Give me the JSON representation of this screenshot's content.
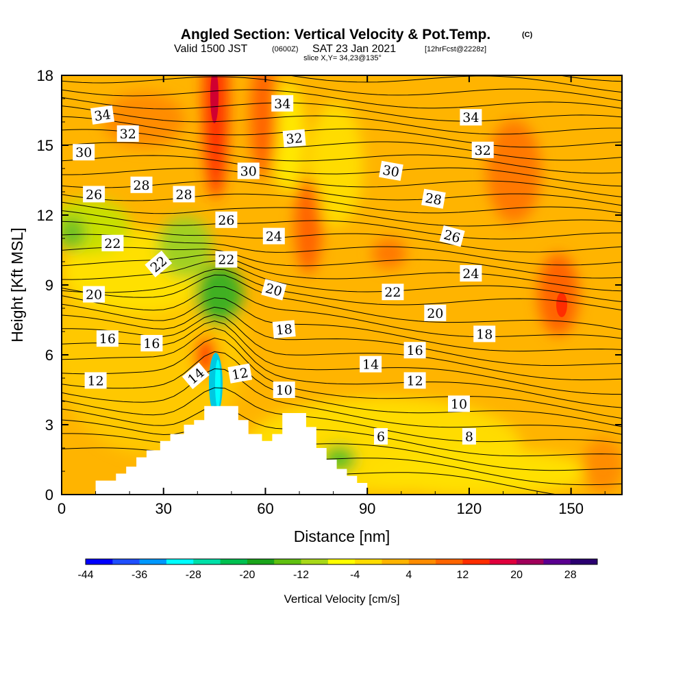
{
  "header": {
    "title": "Angled Section: Vertical Velocity & Pot.Temp.",
    "title_units": "(C)",
    "valid_prefix": "Valid 1500 JST",
    "valid_zulu": "(0600Z)",
    "valid_date": "SAT 23 Jan 2021",
    "forecast": "[12hrFcst@2228z]",
    "slice": "slice X,Y= 34,23@135°"
  },
  "chart_data": {
    "type": "heatmap",
    "xlabel": "Distance [nm]",
    "ylabel": "Height [Kft MSL]",
    "xlim": [
      0,
      165
    ],
    "ylim": [
      0,
      18
    ],
    "x_ticks": [
      0,
      30,
      60,
      90,
      120,
      150
    ],
    "y_ticks": [
      0,
      3,
      6,
      9,
      12,
      15,
      18
    ],
    "colorbar": {
      "label": "Vertical Velocity [cm/s]",
      "min": -44,
      "max": 32,
      "step": 4,
      "tick_values": [
        -44,
        -36,
        -28,
        -20,
        -12,
        -4,
        4,
        12,
        20,
        28
      ],
      "colors": [
        "#0000ff",
        "#1f4fff",
        "#0098ff",
        "#00ffff",
        "#00e0a8",
        "#00c050",
        "#1aa41a",
        "#60c010",
        "#a8d818",
        "#ffff00",
        "#ffdc00",
        "#ffb400",
        "#ff8c00",
        "#ff6400",
        "#ff2d00",
        "#e0003c",
        "#a0005a",
        "#5a0090",
        "#2a0070"
      ]
    },
    "contour_labels": [
      {
        "text": "34",
        "x": 12,
        "y": 16.3,
        "angle": -8
      },
      {
        "text": "32",
        "x": 19.5,
        "y": 15.5,
        "angle": 0
      },
      {
        "text": "30",
        "x": 6.5,
        "y": 14.7,
        "angle": 0
      },
      {
        "text": "26",
        "x": 9.5,
        "y": 12.9,
        "angle": 0
      },
      {
        "text": "28",
        "x": 23.5,
        "y": 13.3,
        "angle": 0
      },
      {
        "text": "28",
        "x": 36,
        "y": 12.9,
        "angle": 0
      },
      {
        "text": "26",
        "x": 48.5,
        "y": 11.8,
        "angle": 0
      },
      {
        "text": "24",
        "x": 62.5,
        "y": 11.1,
        "angle": 0
      },
      {
        "text": "22",
        "x": 15,
        "y": 10.8,
        "angle": 0
      },
      {
        "text": "22",
        "x": 28.5,
        "y": 9.9,
        "angle": -40
      },
      {
        "text": "22",
        "x": 48.5,
        "y": 10.1,
        "angle": 0
      },
      {
        "text": "20",
        "x": 9.5,
        "y": 8.6,
        "angle": 0
      },
      {
        "text": "20",
        "x": 62.5,
        "y": 8.8,
        "angle": 15
      },
      {
        "text": "16",
        "x": 13.5,
        "y": 6.7,
        "angle": 0
      },
      {
        "text": "16",
        "x": 26.5,
        "y": 6.5,
        "angle": 0
      },
      {
        "text": "14",
        "x": 39.5,
        "y": 5.1,
        "angle": -40
      },
      {
        "text": "12",
        "x": 10,
        "y": 4.9,
        "angle": 0
      },
      {
        "text": "12",
        "x": 52.5,
        "y": 5.2,
        "angle": -10
      },
      {
        "text": "10",
        "x": 65.5,
        "y": 4.5,
        "angle": 0
      },
      {
        "text": "34",
        "x": 65,
        "y": 16.8,
        "angle": 0
      },
      {
        "text": "32",
        "x": 68.5,
        "y": 15.3,
        "angle": -5
      },
      {
        "text": "30",
        "x": 55,
        "y": 13.9,
        "angle": 0
      },
      {
        "text": "18",
        "x": 65.5,
        "y": 7.1,
        "angle": -5
      },
      {
        "text": "30",
        "x": 97,
        "y": 13.9,
        "angle": 10
      },
      {
        "text": "28",
        "x": 109.5,
        "y": 12.7,
        "angle": 10
      },
      {
        "text": "26",
        "x": 115,
        "y": 11.1,
        "angle": 15
      },
      {
        "text": "24",
        "x": 120.5,
        "y": 9.5,
        "angle": 0
      },
      {
        "text": "22",
        "x": 97.5,
        "y": 8.7,
        "angle": 0
      },
      {
        "text": "20",
        "x": 110,
        "y": 7.8,
        "angle": 0
      },
      {
        "text": "18",
        "x": 124.5,
        "y": 6.9,
        "angle": 0
      },
      {
        "text": "16",
        "x": 104,
        "y": 6.2,
        "angle": 0
      },
      {
        "text": "14",
        "x": 91,
        "y": 5.6,
        "angle": 0
      },
      {
        "text": "12",
        "x": 104,
        "y": 4.9,
        "angle": 0
      },
      {
        "text": "10",
        "x": 117,
        "y": 3.9,
        "angle": 0
      },
      {
        "text": "8",
        "x": 120,
        "y": 2.5,
        "angle": 0
      },
      {
        "text": "6",
        "x": 94,
        "y": 2.5,
        "angle": 0
      },
      {
        "text": "34",
        "x": 120.5,
        "y": 16.2,
        "angle": 0
      },
      {
        "text": "32",
        "x": 124,
        "y": 14.8,
        "angle": 0
      }
    ],
    "terrain": [
      [
        0,
        0
      ],
      [
        10,
        0
      ],
      [
        10,
        0.6
      ],
      [
        16,
        0.6
      ],
      [
        16,
        0.9
      ],
      [
        19,
        0.9
      ],
      [
        19,
        1.2
      ],
      [
        22,
        1.2
      ],
      [
        22,
        1.6
      ],
      [
        25,
        1.6
      ],
      [
        25,
        1.9
      ],
      [
        29,
        1.9
      ],
      [
        29,
        2.3
      ],
      [
        32,
        2.3
      ],
      [
        32,
        2.6
      ],
      [
        36,
        2.6
      ],
      [
        36,
        3.0
      ],
      [
        39,
        3.0
      ],
      [
        39,
        3.2
      ],
      [
        42,
        3.2
      ],
      [
        42,
        3.8
      ],
      [
        52,
        3.8
      ],
      [
        52,
        3.2
      ],
      [
        55,
        3.2
      ],
      [
        55,
        2.6
      ],
      [
        59,
        2.6
      ],
      [
        59,
        2.3
      ],
      [
        62,
        2.3
      ],
      [
        62,
        2.6
      ],
      [
        65,
        2.6
      ],
      [
        65,
        3.5
      ],
      [
        72,
        3.5
      ],
      [
        72,
        2.9
      ],
      [
        75,
        2.9
      ],
      [
        75,
        2.0
      ],
      [
        78,
        2.0
      ],
      [
        78,
        1.5
      ],
      [
        81,
        1.5
      ],
      [
        81,
        1.1
      ],
      [
        84,
        1.1
      ],
      [
        84,
        0.8
      ],
      [
        87,
        0.8
      ],
      [
        87,
        0.5
      ],
      [
        90,
        0.5
      ],
      [
        90,
        0
      ],
      [
        165,
        0
      ]
    ]
  }
}
